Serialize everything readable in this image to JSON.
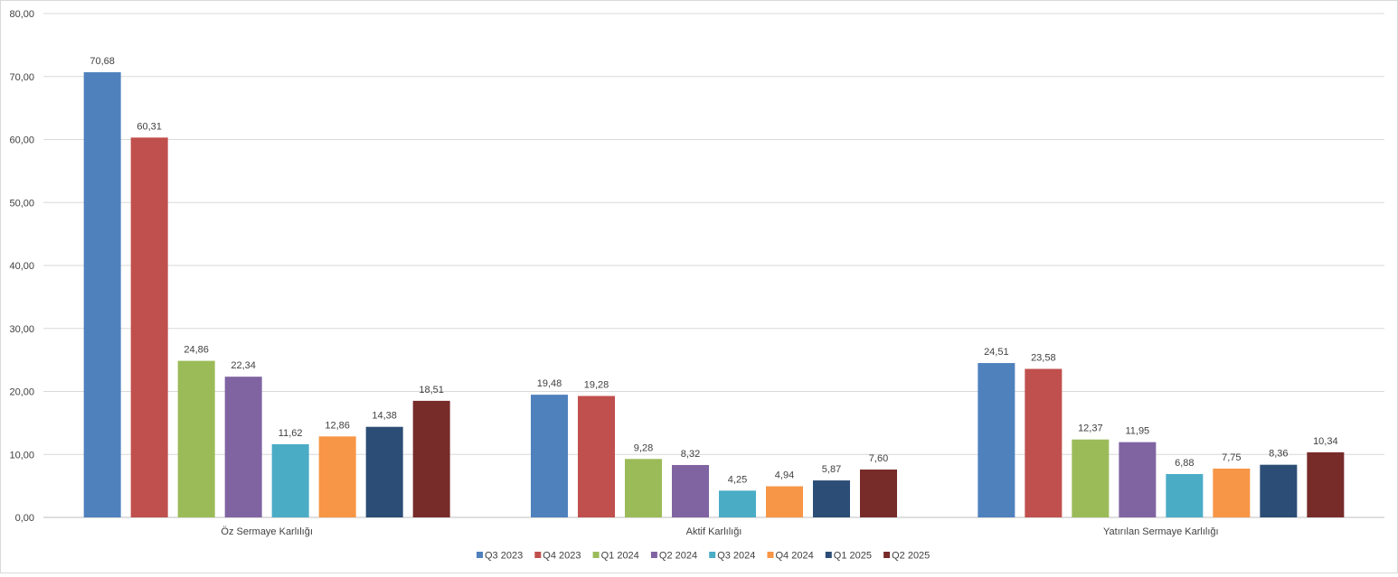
{
  "chart_data": {
    "type": "bar",
    "categories": [
      "Öz Sermaye Karlılığı",
      "Aktif Karlılığı",
      "Yatırılan Sermaye Karlılığı"
    ],
    "series": [
      {
        "name": "Q3 2023",
        "color": "#4F81BD",
        "values": [
          70.68,
          19.48,
          24.51
        ],
        "labels": [
          "70,68",
          "19,48",
          "24,51"
        ]
      },
      {
        "name": "Q4 2023",
        "color": "#C0504D",
        "values": [
          60.31,
          19.28,
          23.58
        ],
        "labels": [
          "60,31",
          "19,28",
          "23,58"
        ]
      },
      {
        "name": "Q1 2024",
        "color": "#9BBB59",
        "values": [
          24.86,
          9.28,
          12.37
        ],
        "labels": [
          "24,86",
          "9,28",
          "12,37"
        ]
      },
      {
        "name": "Q2 2024",
        "color": "#8064A2",
        "values": [
          22.34,
          8.32,
          11.95
        ],
        "labels": [
          "22,34",
          "8,32",
          "11,95"
        ]
      },
      {
        "name": "Q3 2024",
        "color": "#4BACC6",
        "values": [
          11.62,
          4.25,
          6.88
        ],
        "labels": [
          "11,62",
          "4,25",
          "6,88"
        ]
      },
      {
        "name": "Q4 2024",
        "color": "#F79646",
        "values": [
          12.86,
          4.94,
          7.75
        ],
        "labels": [
          "12,86",
          "4,94",
          "7,75"
        ]
      },
      {
        "name": "Q1 2025",
        "color": "#2C4D75",
        "values": [
          14.38,
          5.87,
          8.36
        ],
        "labels": [
          "14,38",
          "5,87",
          "8,36"
        ]
      },
      {
        "name": "Q2 2025",
        "color": "#772C2A",
        "values": [
          18.51,
          7.6,
          10.34
        ],
        "labels": [
          "18,51",
          "7,60",
          "10,34"
        ]
      }
    ],
    "ylim": [
      0,
      80
    ],
    "yticks": [
      0,
      10,
      20,
      30,
      40,
      50,
      60,
      70,
      80
    ],
    "ytick_labels": [
      "0,00",
      "10,00",
      "20,00",
      "30,00",
      "40,00",
      "50,00",
      "60,00",
      "70,00",
      "80,00"
    ],
    "title": "",
    "xlabel": "",
    "ylabel": "",
    "grid": true,
    "legend_position": "bottom"
  }
}
